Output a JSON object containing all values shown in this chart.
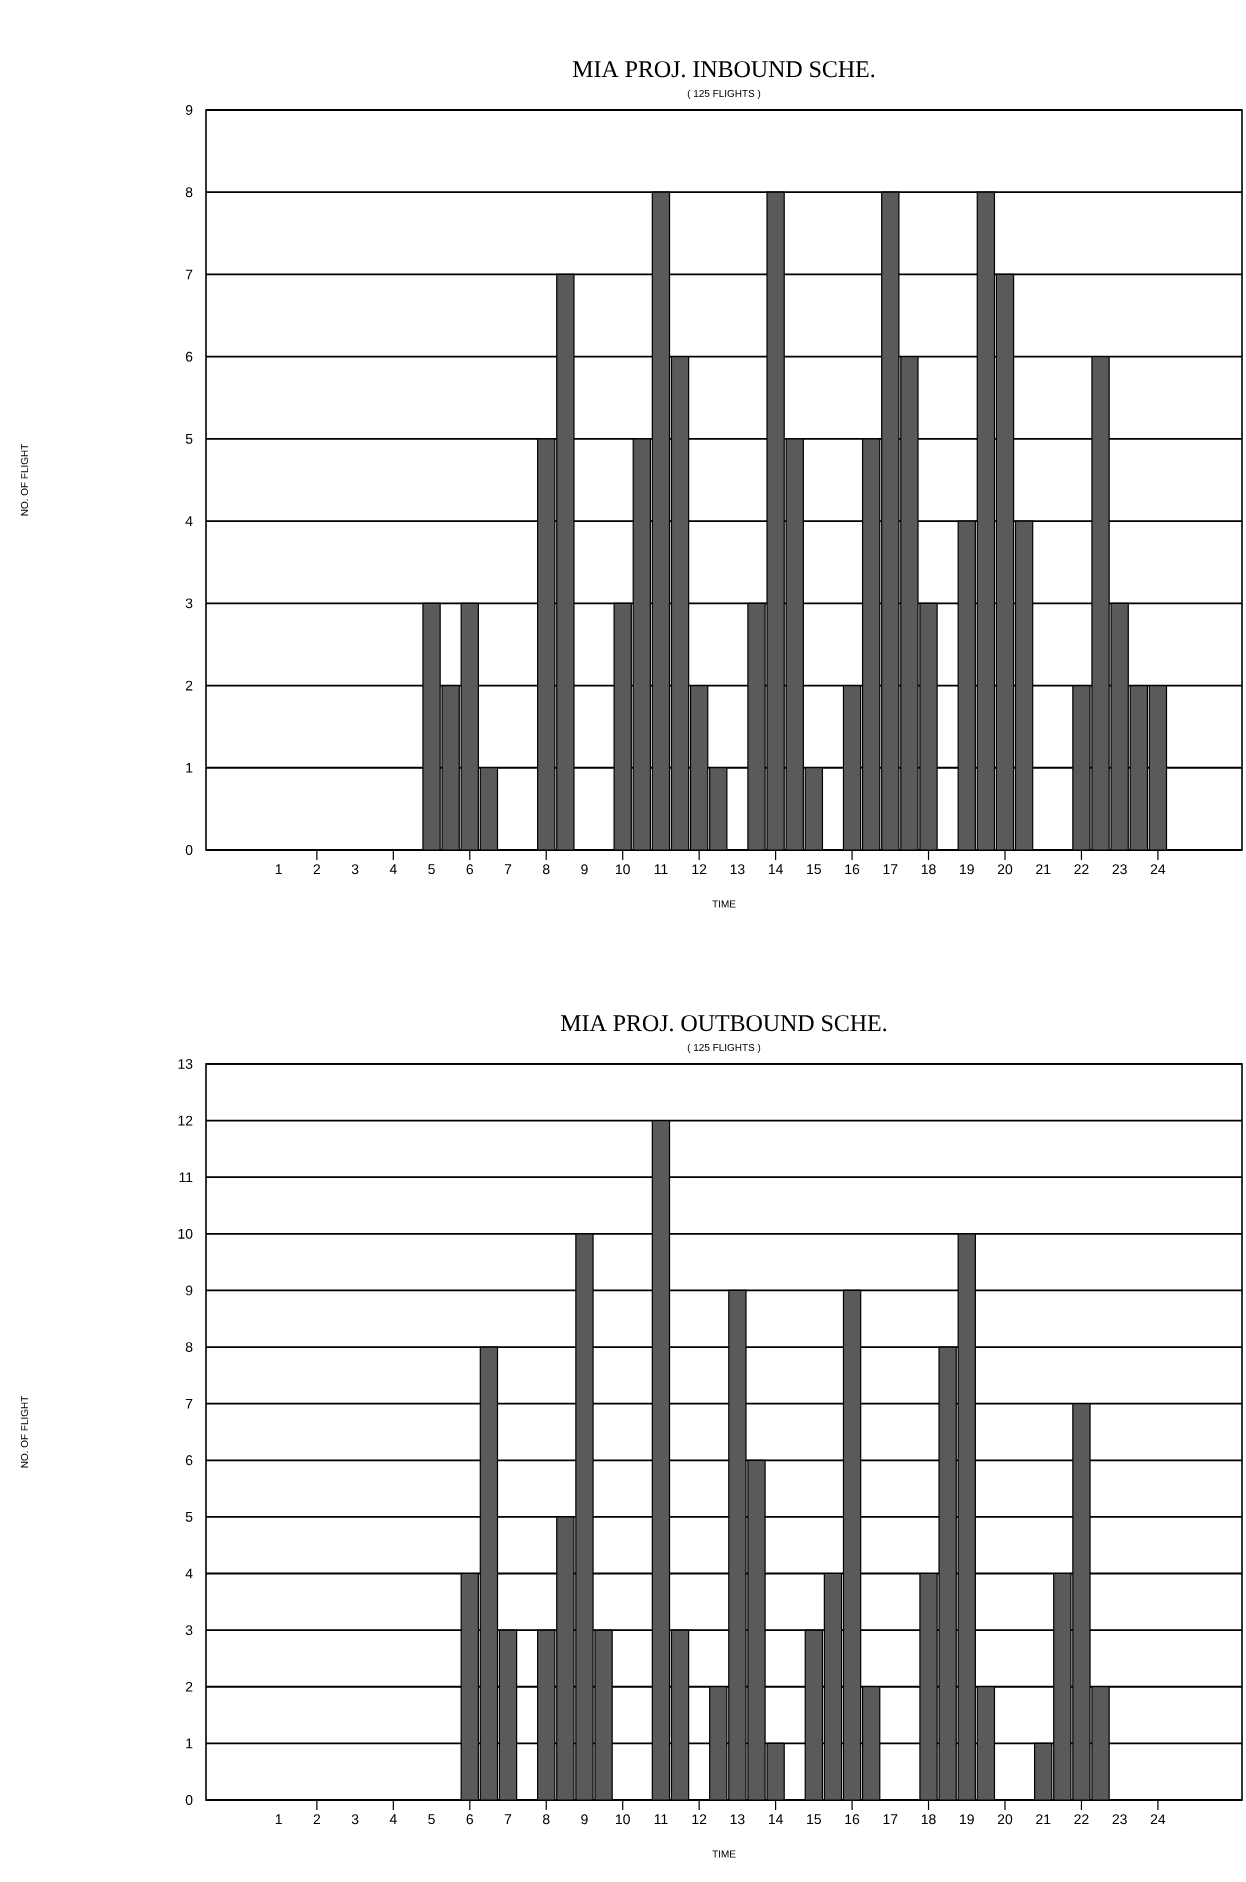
{
  "chart_data": [
    {
      "type": "bar",
      "title": "MIA PROJ. INBOUND SCHE.",
      "subtitle": "( 125 FLIGHTS )",
      "xlabel": "TIME",
      "ylabel": "NO. OF FLIGHT",
      "grid": "y",
      "color": "#5a5a5a",
      "x": [
        5,
        5.5,
        6,
        6.5,
        8,
        8.5,
        10,
        10.5,
        11,
        11.5,
        12,
        12.5,
        13.5,
        14,
        14.5,
        15,
        16,
        16.5,
        17,
        17.5,
        18,
        19,
        19.5,
        20,
        20.5,
        22,
        22.5,
        23,
        23.5,
        24
      ],
      "values": [
        3,
        2,
        3,
        1,
        5,
        7,
        3,
        5,
        8,
        6,
        2,
        1,
        3,
        8,
        5,
        1,
        2,
        5,
        8,
        6,
        3,
        4,
        8,
        7,
        4,
        2,
        6,
        3,
        2,
        2
      ],
      "xlim": [
        -0.9,
        26.2
      ],
      "ylim": [
        0,
        9
      ],
      "xticks": [
        1,
        2,
        3,
        4,
        5,
        6,
        7,
        8,
        9,
        10,
        11,
        12,
        13,
        14,
        15,
        16,
        17,
        18,
        19,
        20,
        21,
        22,
        23,
        24
      ],
      "yticks": [
        0,
        1,
        2,
        3,
        4,
        5,
        6,
        7,
        8,
        9
      ]
    },
    {
      "type": "bar",
      "title": "MIA PROJ. OUTBOUND SCHE.",
      "subtitle": "( 125 FLIGHTS )",
      "xlabel": "TIME",
      "ylabel": "NO. OF FLIGHT",
      "grid": "y",
      "color": "#5a5a5a",
      "x": [
        6,
        6.5,
        7,
        8,
        8.5,
        9,
        9.5,
        11,
        11.5,
        12.5,
        13,
        13.5,
        14,
        15,
        15.5,
        16,
        16.5,
        18,
        18.5,
        19,
        19.5,
        21,
        21.5,
        22,
        22.5
      ],
      "values": [
        4,
        8,
        3,
        3,
        5,
        10,
        3,
        12,
        3,
        2,
        9,
        6,
        1,
        3,
        4,
        9,
        2,
        4,
        8,
        10,
        2,
        1,
        4,
        7,
        2
      ],
      "xlim": [
        -0.9,
        26.2
      ],
      "ylim": [
        0,
        13
      ],
      "xticks": [
        1,
        2,
        3,
        4,
        5,
        6,
        7,
        8,
        9,
        10,
        11,
        12,
        13,
        14,
        15,
        16,
        17,
        18,
        19,
        20,
        21,
        22,
        23,
        24
      ],
      "yticks": [
        0,
        1,
        2,
        3,
        4,
        5,
        6,
        7,
        8,
        9,
        10,
        11,
        12,
        13
      ]
    }
  ]
}
